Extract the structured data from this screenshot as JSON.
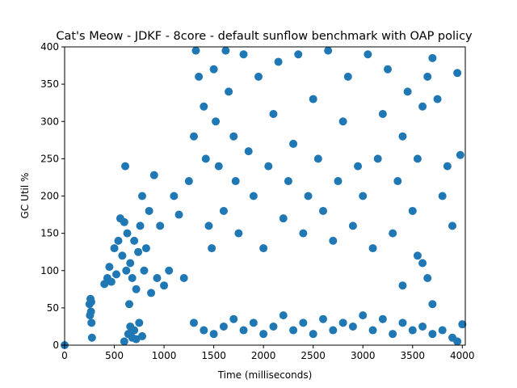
{
  "chart_data": {
    "type": "scatter",
    "title": "Cat's Meow - JDKF - 8core -  default sunflow benchmark with OAP policy",
    "xlabel": "Time (milliseconds)",
    "ylabel": "GC Util %",
    "xlim": [
      0,
      4030
    ],
    "ylim": [
      0,
      400
    ],
    "xticks": [
      0,
      500,
      1000,
      1500,
      2000,
      2500,
      3000,
      3500,
      4000
    ],
    "yticks": [
      0,
      50,
      100,
      150,
      200,
      250,
      300,
      350,
      400
    ],
    "grid": false,
    "legend": "none",
    "series": [
      {
        "color": "#1f77b4",
        "points": [
          [
            0,
            0
          ],
          [
            250,
            55
          ],
          [
            260,
            62
          ],
          [
            265,
            45
          ],
          [
            270,
            30
          ],
          [
            275,
            10
          ],
          [
            255,
            40
          ],
          [
            268,
            58
          ],
          [
            400,
            82
          ],
          [
            430,
            90
          ],
          [
            450,
            105
          ],
          [
            470,
            85
          ],
          [
            500,
            130
          ],
          [
            520,
            95
          ],
          [
            540,
            140
          ],
          [
            560,
            170
          ],
          [
            580,
            120
          ],
          [
            600,
            165
          ],
          [
            610,
            240
          ],
          [
            620,
            100
          ],
          [
            630,
            150
          ],
          [
            650,
            55
          ],
          [
            660,
            110
          ],
          [
            680,
            90
          ],
          [
            700,
            140
          ],
          [
            720,
            75
          ],
          [
            740,
            125
          ],
          [
            760,
            160
          ],
          [
            780,
            200
          ],
          [
            800,
            100
          ],
          [
            820,
            130
          ],
          [
            850,
            180
          ],
          [
            870,
            70
          ],
          [
            900,
            228
          ],
          [
            930,
            90
          ],
          [
            960,
            160
          ],
          [
            1000,
            80
          ],
          [
            1050,
            100
          ],
          [
            1100,
            200
          ],
          [
            1150,
            175
          ],
          [
            1200,
            90
          ],
          [
            1250,
            220
          ],
          [
            600,
            5
          ],
          [
            640,
            15
          ],
          [
            660,
            25
          ],
          [
            680,
            10
          ],
          [
            700,
            20
          ],
          [
            720,
            8
          ],
          [
            750,
            30
          ],
          [
            780,
            12
          ],
          [
            1300,
            280
          ],
          [
            1320,
            395
          ],
          [
            1350,
            360
          ],
          [
            1400,
            320
          ],
          [
            1420,
            250
          ],
          [
            1450,
            160
          ],
          [
            1480,
            130
          ],
          [
            1500,
            370
          ],
          [
            1520,
            300
          ],
          [
            1550,
            240
          ],
          [
            1600,
            180
          ],
          [
            1620,
            395
          ],
          [
            1650,
            340
          ],
          [
            1700,
            280
          ],
          [
            1720,
            220
          ],
          [
            1750,
            150
          ],
          [
            1800,
            390
          ],
          [
            1850,
            260
          ],
          [
            1900,
            200
          ],
          [
            1950,
            360
          ],
          [
            2000,
            130
          ],
          [
            2050,
            240
          ],
          [
            2100,
            310
          ],
          [
            2150,
            380
          ],
          [
            2200,
            170
          ],
          [
            2250,
            220
          ],
          [
            2300,
            270
          ],
          [
            2350,
            390
          ],
          [
            2400,
            150
          ],
          [
            2450,
            200
          ],
          [
            2500,
            330
          ],
          [
            2550,
            250
          ],
          [
            2600,
            180
          ],
          [
            2650,
            395
          ],
          [
            2700,
            140
          ],
          [
            2750,
            220
          ],
          [
            2800,
            300
          ],
          [
            2850,
            360
          ],
          [
            2900,
            160
          ],
          [
            2950,
            240
          ],
          [
            3000,
            200
          ],
          [
            3050,
            390
          ],
          [
            3100,
            130
          ],
          [
            3150,
            250
          ],
          [
            3200,
            310
          ],
          [
            3250,
            370
          ],
          [
            3300,
            150
          ],
          [
            3350,
            220
          ],
          [
            3400,
            280
          ],
          [
            3450,
            340
          ],
          [
            3500,
            180
          ],
          [
            3550,
            250
          ],
          [
            3600,
            320
          ],
          [
            3650,
            360
          ],
          [
            3700,
            385
          ],
          [
            3750,
            330
          ],
          [
            3800,
            200
          ],
          [
            3850,
            240
          ],
          [
            3900,
            160
          ],
          [
            3950,
            365
          ],
          [
            3980,
            255
          ],
          [
            3700,
            55
          ],
          [
            3550,
            120
          ],
          [
            3600,
            110
          ],
          [
            3650,
            90
          ],
          [
            3400,
            80
          ],
          [
            1300,
            30
          ],
          [
            1400,
            20
          ],
          [
            1500,
            15
          ],
          [
            1600,
            25
          ],
          [
            1700,
            35
          ],
          [
            1800,
            20
          ],
          [
            1900,
            30
          ],
          [
            2000,
            15
          ],
          [
            2100,
            25
          ],
          [
            2200,
            40
          ],
          [
            2300,
            20
          ],
          [
            2400,
            30
          ],
          [
            2500,
            15
          ],
          [
            2600,
            35
          ],
          [
            2700,
            20
          ],
          [
            2800,
            30
          ],
          [
            2900,
            25
          ],
          [
            3000,
            40
          ],
          [
            3100,
            20
          ],
          [
            3200,
            35
          ],
          [
            3300,
            15
          ],
          [
            3400,
            30
          ],
          [
            3500,
            20
          ],
          [
            3600,
            25
          ],
          [
            3700,
            15
          ],
          [
            3800,
            20
          ],
          [
            3900,
            10
          ],
          [
            4000,
            28
          ],
          [
            3950,
            5
          ]
        ]
      }
    ]
  }
}
